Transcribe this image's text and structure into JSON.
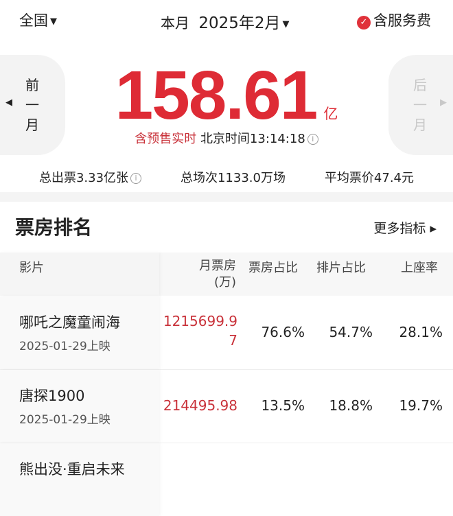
{
  "header": {
    "region": "全国",
    "period_label": "本月",
    "month": "2025年2月",
    "service_fee": "含服务费",
    "service_fee_checked": true
  },
  "nav": {
    "prev": [
      "前",
      "一",
      "月"
    ],
    "next": [
      "后",
      "一",
      "月"
    ]
  },
  "summary": {
    "total": "158.61",
    "unit": "亿",
    "realtime_label": "含预售实时",
    "time_label": "北京时间13:14:18"
  },
  "stats": {
    "tickets": "总出票3.33亿张",
    "shows": "总场次1133.0万场",
    "avg_price": "平均票价47.4元"
  },
  "ranking": {
    "title": "票房排名",
    "more": "更多指标 ▸",
    "columns": [
      "影片",
      "月票房\n(万)",
      "票房占比",
      "排片占比",
      "上座率"
    ],
    "rows": [
      {
        "title": "哪吒之魔童闹海",
        "date": "2025-01-29上映",
        "box": "1215699.97",
        "share": "76.6%",
        "schedule": "54.7%",
        "occupancy": "28.1%"
      },
      {
        "title": "唐探1900",
        "date": "2025-01-29上映",
        "box": "214495.98",
        "share": "13.5%",
        "schedule": "18.8%",
        "occupancy": "19.7%"
      },
      {
        "title": "熊出没·重启未来",
        "date": "",
        "box": "",
        "share": "",
        "schedule": "",
        "occupancy": ""
      }
    ]
  },
  "colors": {
    "accent": "#de2b35"
  }
}
